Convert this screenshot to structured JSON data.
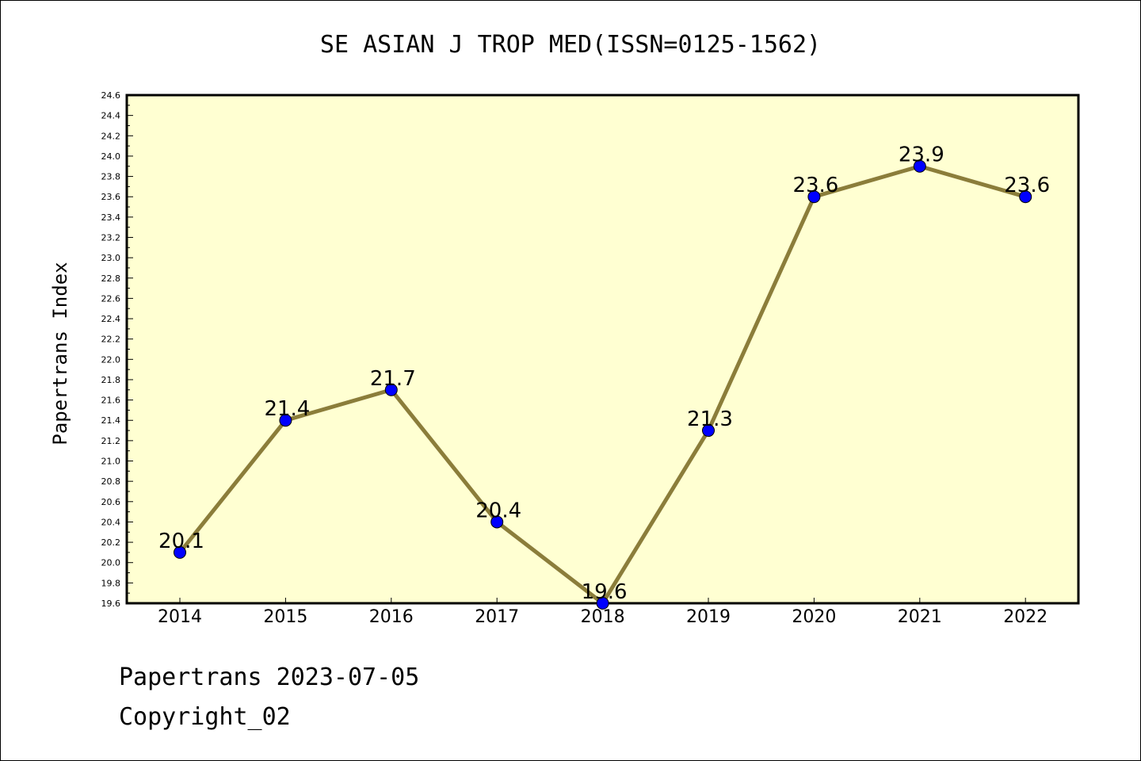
{
  "chart_data": {
    "type": "line",
    "title": "SE ASIAN J TROP MED(ISSN=0125-1562)",
    "ylabel": "Papertrans Index",
    "xlabel": "",
    "categories": [
      "2014",
      "2015",
      "2016",
      "2017",
      "2018",
      "2019",
      "2020",
      "2021",
      "2022"
    ],
    "values": [
      20.1,
      21.4,
      21.7,
      20.4,
      19.6,
      21.3,
      23.6,
      23.9,
      23.6
    ],
    "data_labels": [
      "20.1",
      "21.4",
      "21.7",
      "20.4",
      "19.6",
      "21.3",
      "23.6",
      "23.9",
      "23.6"
    ],
    "ylim": [
      19.6,
      24.6
    ],
    "yticks": [
      "19.6",
      "19.8",
      "20.0",
      "20.2",
      "20.4",
      "20.6",
      "20.8",
      "21.0",
      "21.2",
      "21.4",
      "21.6",
      "21.8",
      "22.0",
      "22.2",
      "22.4",
      "22.6",
      "22.8",
      "23.0",
      "23.2",
      "23.4",
      "23.6",
      "23.8",
      "24.0",
      "24.2",
      "24.4",
      "24.6"
    ],
    "grid": false,
    "colors": {
      "plot_background": "#ffffd2",
      "line": "#8b7d3a",
      "marker": "#0000ff"
    }
  },
  "footer": {
    "line1": "Papertrans 2023-07-05",
    "line2": "Copyright_02"
  }
}
